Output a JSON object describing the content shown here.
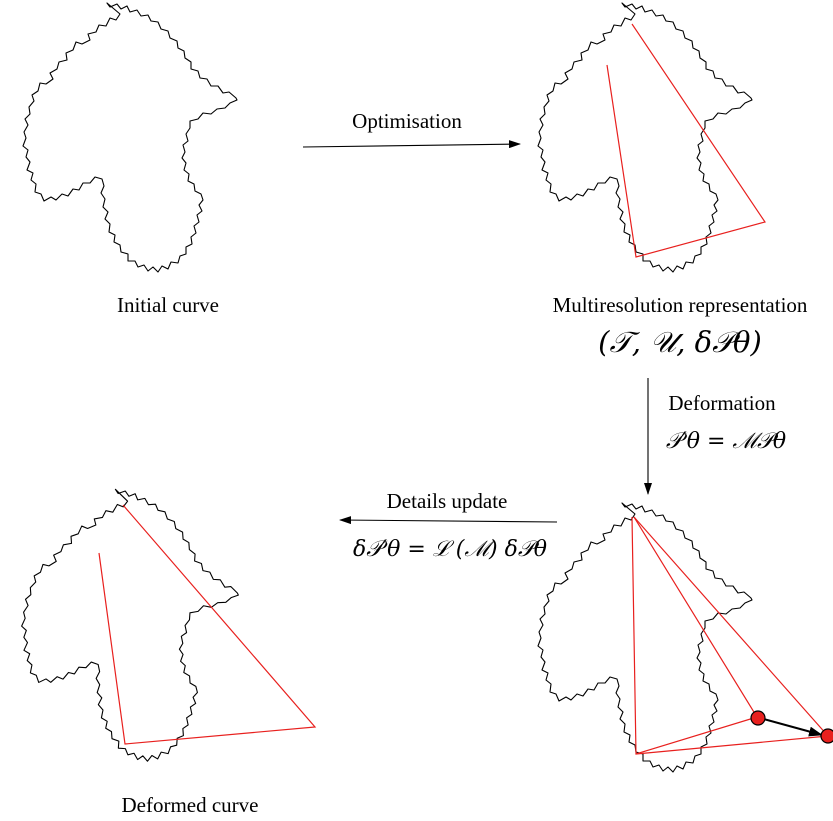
{
  "labels": {
    "initial": "Initial curve",
    "multires": "Multiresolution representation",
    "deformed": "Deformed curve"
  },
  "arrows": {
    "optimisation": "Optimisation",
    "deformation": "Deformation",
    "details_update": "Details update"
  },
  "math": {
    "multires_tuple": "(𝒯, 𝒰, δ𝒫θ)",
    "deformation_eq": "𝒫′θ = ℳ𝒫θ",
    "details_eq": "δ𝒫′θ = ℒ (ℳ) δ𝒫θ"
  },
  "colors": {
    "curve": "#000000",
    "polygon": "#e8201e",
    "control_point": "#e8201e"
  }
}
